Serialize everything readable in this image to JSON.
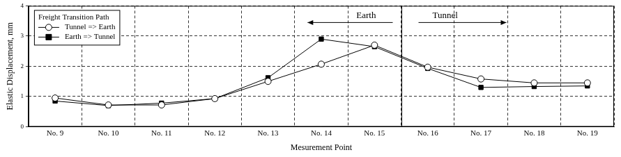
{
  "chart_data": {
    "type": "line",
    "x_label": "Mesurement Point",
    "y_label": "Elastic Displacement, mm",
    "categories": [
      "No. 9",
      "No. 10",
      "No. 11",
      "No. 12",
      "No. 13",
      "No. 14",
      "No. 15",
      "No. 16",
      "No. 17",
      "No. 18",
      "No. 19"
    ],
    "series": [
      {
        "name": "Tunnel => Earth",
        "color": "#000000",
        "marker": "open_circle",
        "line_style": "solid",
        "values": [
          0.95,
          0.72,
          0.72,
          0.93,
          1.5,
          2.07,
          2.7,
          1.97,
          1.58,
          1.45,
          1.45
        ]
      },
      {
        "name": "Earth => Tunnel",
        "color": "#000000",
        "marker": "square",
        "line_style": "solid",
        "values": [
          0.85,
          0.7,
          0.78,
          0.93,
          1.62,
          2.9,
          2.65,
          1.93,
          1.3,
          1.33,
          1.35
        ]
      }
    ],
    "ylim": [
      0,
      4
    ],
    "yticks": [
      0,
      1,
      2,
      3,
      4
    ],
    "grid": true,
    "legend": "upper left",
    "legend_title": "Freight Transition Path",
    "annotations": [
      "Earth",
      "Tunnel"
    ]
  }
}
